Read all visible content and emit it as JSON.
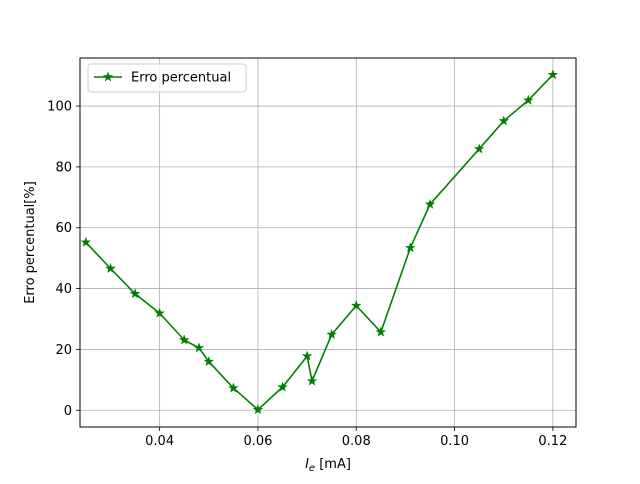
{
  "chart_data": {
    "type": "line",
    "title": "",
    "xlabel_main": "I",
    "xlabel_sub": "e",
    "xlabel_unit": " [mA]",
    "ylabel": "Erro percentual[%]",
    "xlim": [
      0.0238,
      0.1247
    ],
    "ylim": [
      -5.5,
      115.8
    ],
    "xticks": [
      0.04,
      0.06,
      0.08,
      0.1,
      0.12
    ],
    "xtick_labels": [
      "0.04",
      "0.06",
      "0.08",
      "0.10",
      "0.12"
    ],
    "yticks": [
      0,
      20,
      40,
      60,
      80,
      100
    ],
    "ytick_labels": [
      "0",
      "20",
      "40",
      "60",
      "80",
      "100"
    ],
    "grid": true,
    "legend_position": "upper-left",
    "series": [
      {
        "name": "Erro percentual",
        "color": "#008000",
        "marker": "star",
        "x": [
          0.025,
          0.03,
          0.035,
          0.04,
          0.045,
          0.048,
          0.05,
          0.055,
          0.06,
          0.065,
          0.07,
          0.071,
          0.075,
          0.08,
          0.085,
          0.091,
          0.095,
          0.105,
          0.11,
          0.115,
          0.12
        ],
        "y": [
          55.2,
          46.6,
          38.3,
          31.9,
          23.1,
          20.5,
          16.0,
          7.3,
          0.2,
          7.6,
          17.8,
          9.6,
          24.9,
          34.4,
          25.7,
          53.4,
          67.7,
          85.9,
          95.1,
          101.9,
          110.3
        ]
      }
    ]
  }
}
